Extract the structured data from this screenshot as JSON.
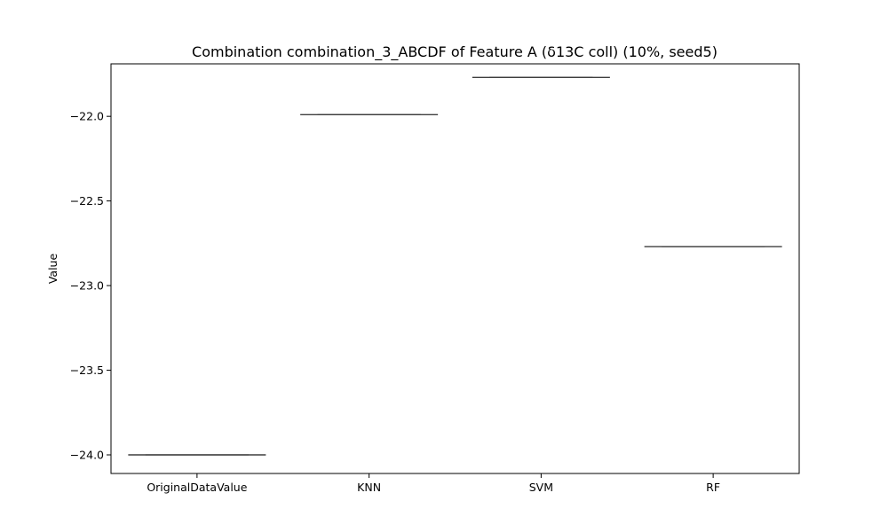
{
  "chart_data": {
    "type": "box",
    "title": "Combination combination_3_ABCDF of Feature A (δ13C coll) (10%, seed5)",
    "xlabel": "",
    "ylabel": "Value",
    "categories": [
      "OriginalDataValue",
      "KNN",
      "SVM",
      "RF"
    ],
    "values": [
      -24.0,
      -21.99,
      -21.77,
      -22.77
    ],
    "ylim": [
      -24.11,
      -21.69
    ],
    "yticks": [
      -24.0,
      -23.5,
      -23.0,
      -22.5,
      -22.0
    ],
    "ytick_labels": [
      "−24.0",
      "−23.5",
      "−23.0",
      "−22.5",
      "−22.0"
    ],
    "grid": false,
    "legend": "none",
    "colors": {
      "box_line": "#3f3f3f",
      "axes": "#000000"
    }
  }
}
